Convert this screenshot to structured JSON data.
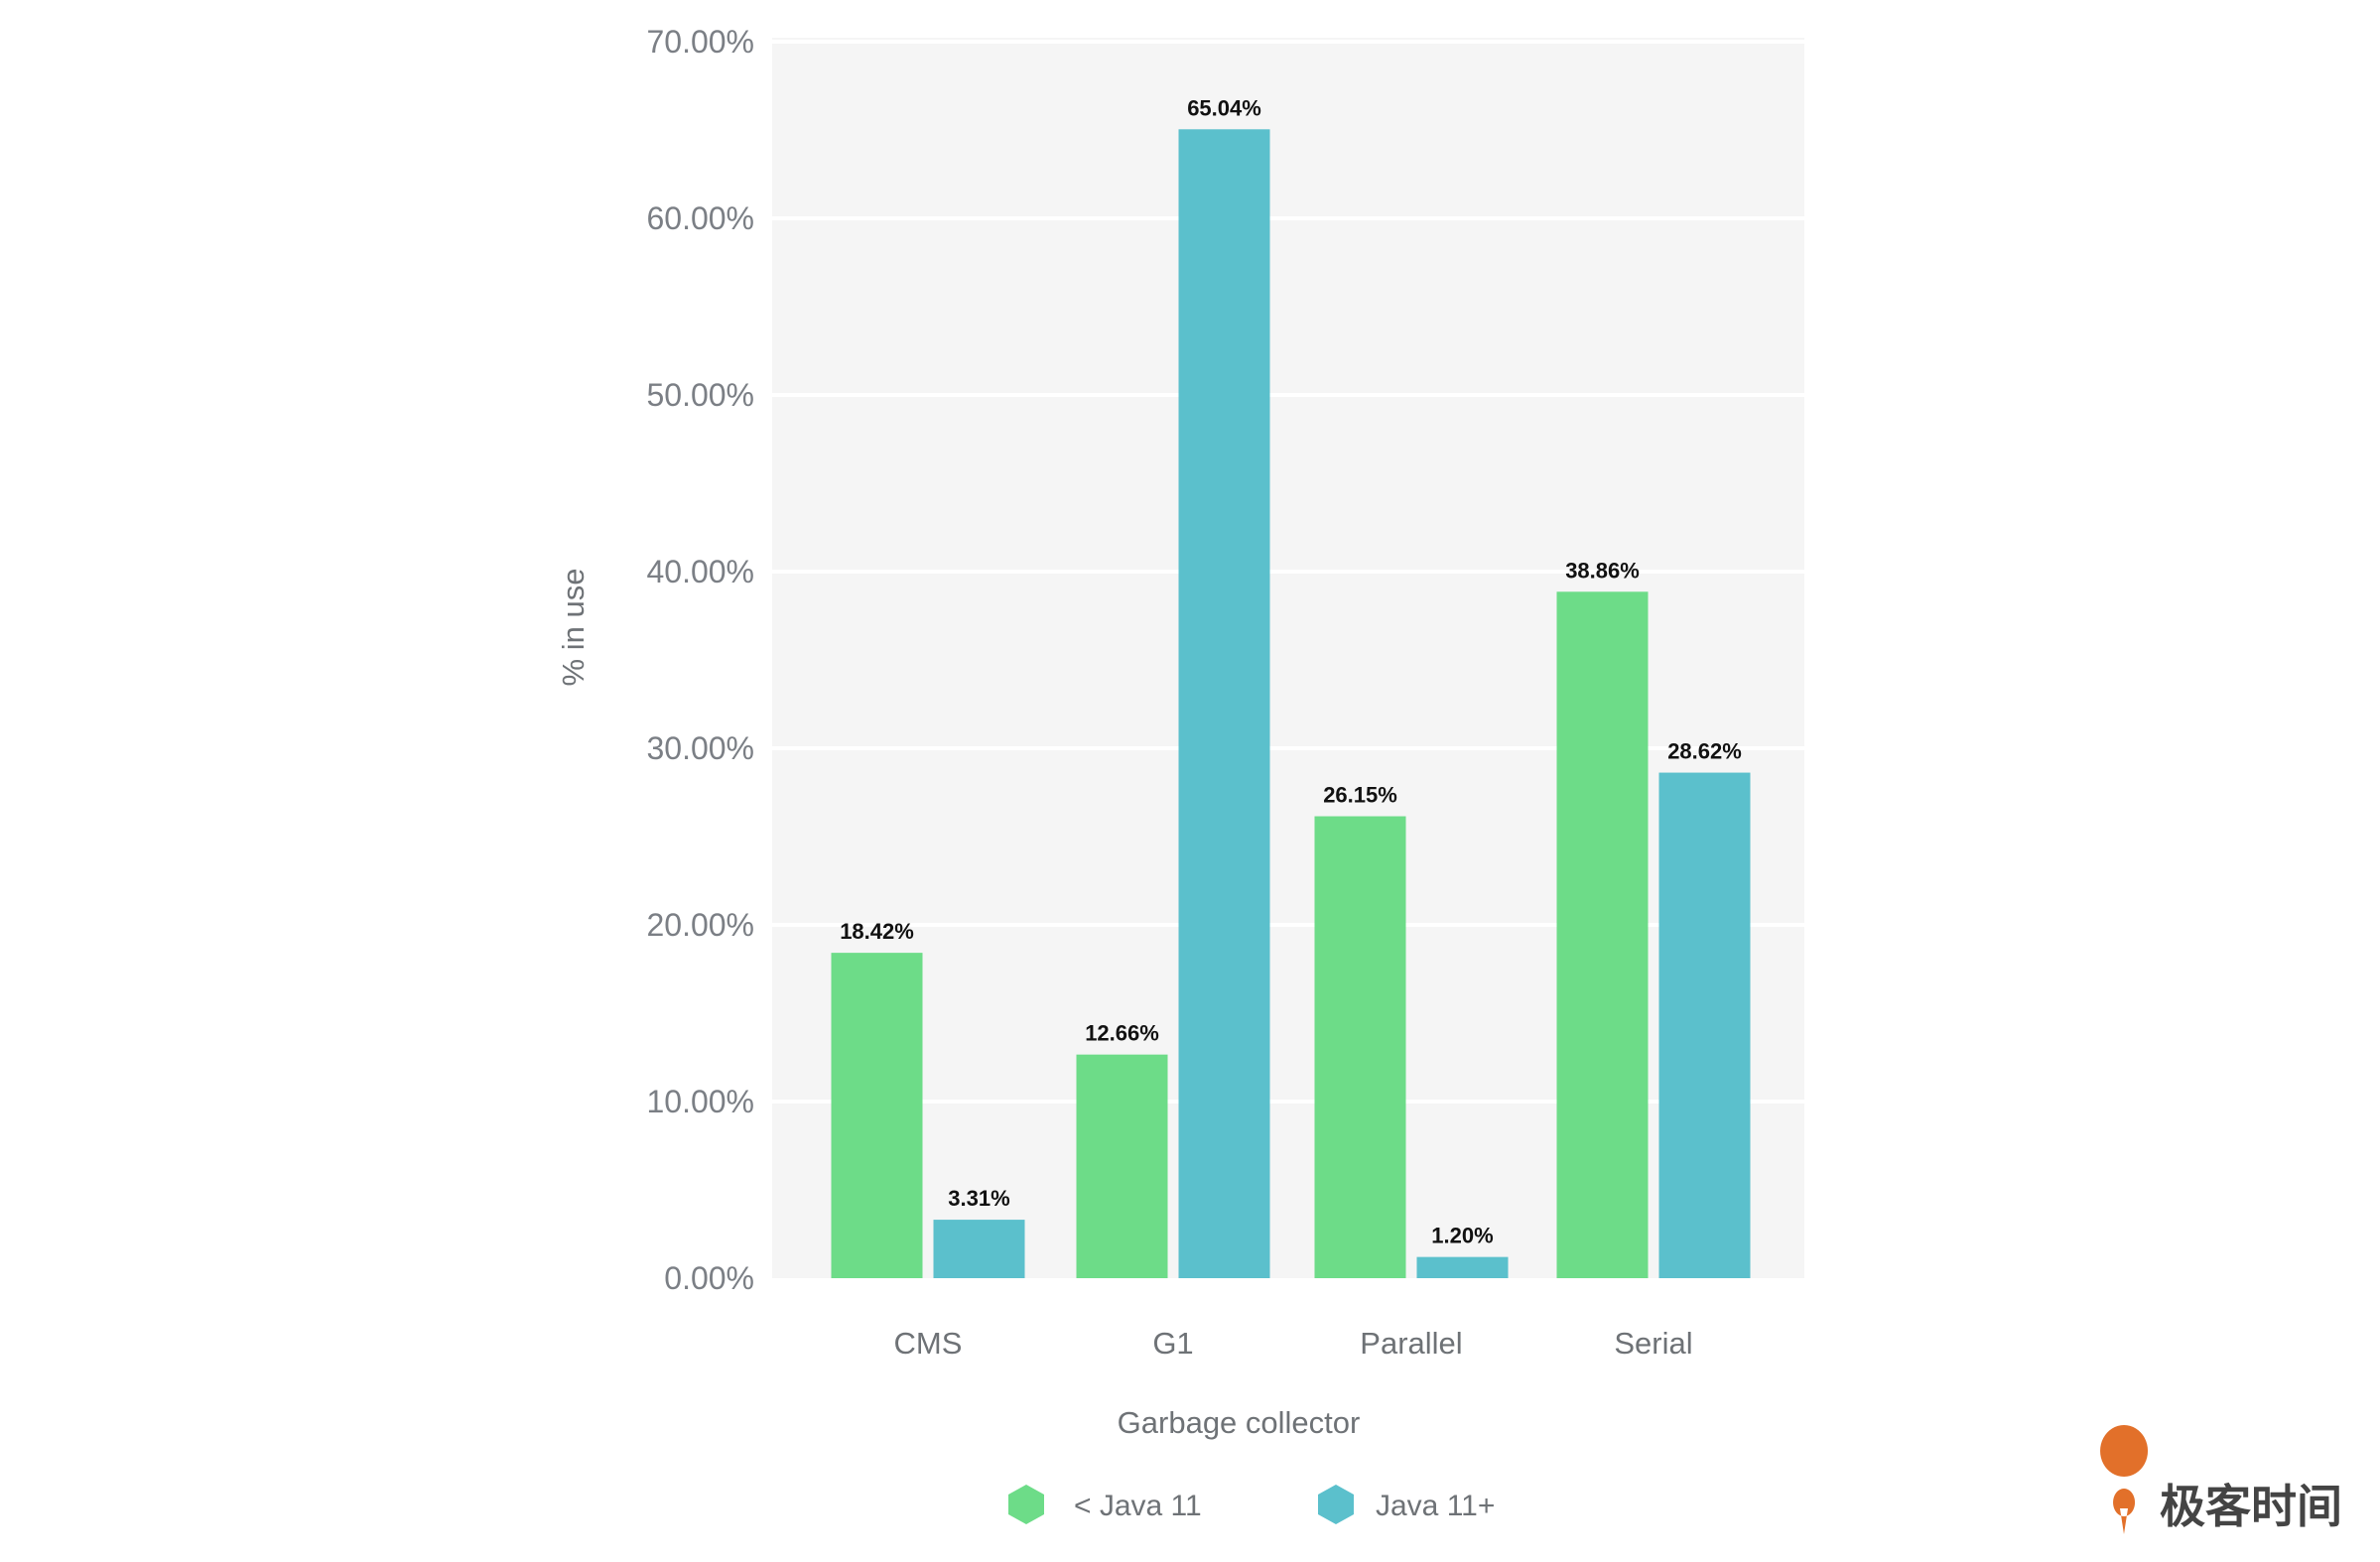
{
  "chart_data": {
    "type": "bar",
    "title": "",
    "xlabel": "Garbage collector",
    "ylabel": "% in use",
    "ylim": [
      0,
      70
    ],
    "yticks": [
      "0.00%",
      "10.00%",
      "20.00%",
      "30.00%",
      "40.00%",
      "50.00%",
      "60.00%",
      "70.00%"
    ],
    "categories": [
      "CMS",
      "G1",
      "Parallel",
      "Serial"
    ],
    "series": [
      {
        "name": "< Java 11",
        "color": "#6ddc88",
        "values": [
          18.42,
          12.66,
          26.15,
          38.86
        ],
        "labels": [
          "18.42%",
          "12.66%",
          "26.15%",
          "38.86%"
        ]
      },
      {
        "name": "Java 11+",
        "color": "#5bc0cc",
        "values": [
          3.31,
          65.04,
          1.2,
          28.62
        ],
        "labels": [
          "3.31%",
          "65.04%",
          "1.20%",
          "28.62%"
        ]
      }
    ],
    "grid": true,
    "legend": "bottom-center"
  },
  "watermark": "极客时间"
}
